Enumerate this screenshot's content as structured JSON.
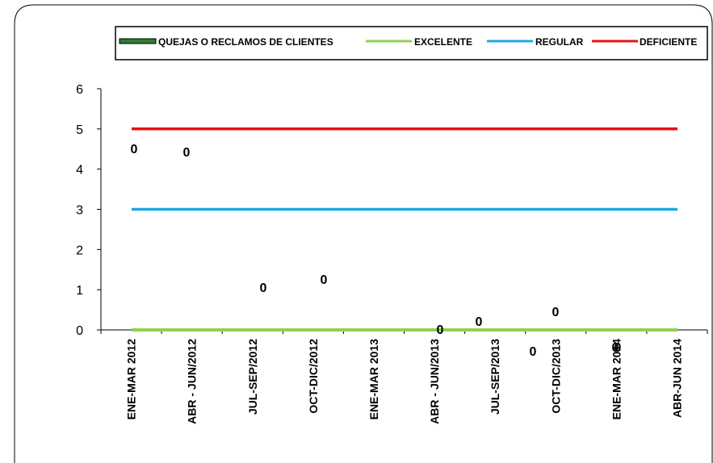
{
  "chart_data": {
    "type": "line",
    "categories": [
      "ENE-MAR 2012",
      "ABR - JUN/2012",
      "JUL-SEP/2012",
      "OCT-DIC/2012",
      "ENE-MAR 2013",
      "ABR - JUN/2013",
      "JUL-SEP/2013",
      "OCT-DIC/2013",
      "ENE-MAR 2014",
      "ABR-JUN 2014"
    ],
    "ylim": [
      0,
      6
    ],
    "yticks": [
      "0",
      "1",
      "2",
      "3",
      "4",
      "5",
      "6"
    ],
    "legend_position": "top",
    "series": [
      {
        "name": "QUEJAS O RECLAMOS DE CLIENTES",
        "color": "#2e7d32",
        "values": [
          0,
          0,
          0,
          0,
          0,
          0,
          0,
          0,
          0,
          0
        ]
      },
      {
        "name": "EXCELENTE",
        "color": "#92d050",
        "values": [
          0,
          0,
          0,
          0,
          0,
          0,
          0,
          0,
          0,
          0
        ]
      },
      {
        "name": "REGULAR",
        "color": "#1fa9e1",
        "values": [
          3,
          3,
          3,
          3,
          3,
          3,
          3,
          3,
          3,
          3
        ]
      },
      {
        "name": "DEFICIENTE",
        "color": "#e81010",
        "values": [
          5,
          5,
          5,
          5,
          5,
          5,
          5,
          5,
          5,
          5
        ]
      }
    ],
    "data_labels": [
      "0",
      "0",
      "0",
      "0",
      "0",
      "0",
      "0",
      "0",
      "0",
      "0"
    ],
    "grid": false
  }
}
